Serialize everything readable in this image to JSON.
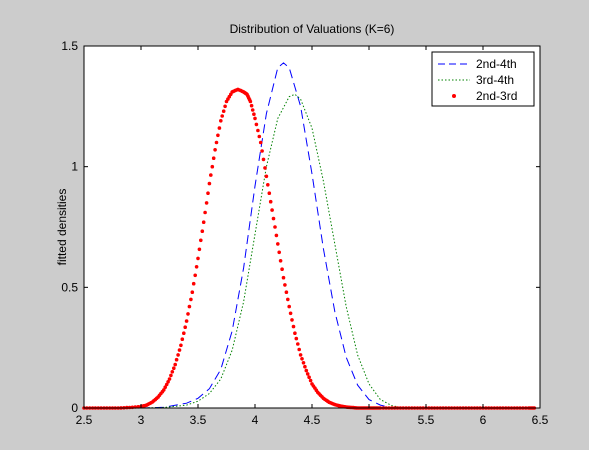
{
  "chart_data": {
    "type": "line",
    "title": "Distribution of Valuations (K=6)",
    "xlabel": "",
    "ylabel": "fitted densities",
    "xlim": [
      2.5,
      6.5
    ],
    "ylim": [
      0,
      1.5
    ],
    "xticks": [
      2.5,
      3,
      3.5,
      4,
      4.5,
      5,
      5.5,
      6,
      6.5
    ],
    "xtick_labels": [
      "2.5",
      "3",
      "3.5",
      "4",
      "4.5",
      "5",
      "5.5",
      "6",
      "6.5"
    ],
    "yticks": [
      0,
      0.5,
      1,
      1.5
    ],
    "ytick_labels": [
      "0",
      "0.5",
      "1",
      "1.5"
    ],
    "grid": false,
    "legend_position": "top-right",
    "series": [
      {
        "name": "2nd-4th",
        "style": "dashed",
        "color": "#0000ff",
        "x": [
          3.0,
          3.2,
          3.4,
          3.5,
          3.6,
          3.7,
          3.8,
          3.9,
          4.0,
          4.1,
          4.2,
          4.25,
          4.3,
          4.4,
          4.5,
          4.6,
          4.7,
          4.8,
          4.9,
          5.0,
          5.1,
          5.2
        ],
        "y": [
          0.0,
          0.003,
          0.02,
          0.04,
          0.08,
          0.16,
          0.32,
          0.58,
          0.92,
          1.22,
          1.41,
          1.43,
          1.41,
          1.25,
          0.97,
          0.66,
          0.4,
          0.21,
          0.095,
          0.035,
          0.012,
          0.0
        ]
      },
      {
        "name": "3rd-4th",
        "style": "dotted",
        "color": "#008000",
        "x": [
          3.0,
          3.2,
          3.4,
          3.5,
          3.6,
          3.7,
          3.8,
          3.9,
          4.0,
          4.1,
          4.2,
          4.3,
          4.35,
          4.4,
          4.5,
          4.6,
          4.7,
          4.8,
          4.9,
          5.0,
          5.1,
          5.2,
          5.3
        ],
        "y": [
          0.0,
          0.002,
          0.012,
          0.028,
          0.06,
          0.12,
          0.24,
          0.44,
          0.72,
          1.0,
          1.2,
          1.29,
          1.3,
          1.28,
          1.16,
          0.94,
          0.68,
          0.42,
          0.22,
          0.1,
          0.035,
          0.01,
          0.0
        ]
      },
      {
        "name": "2nd-3rd",
        "style": "markers",
        "color": "#ff0000",
        "x": [
          2.5,
          2.6,
          2.7,
          2.8,
          2.9,
          3.0,
          3.05,
          3.1,
          3.15,
          3.2,
          3.25,
          3.3,
          3.35,
          3.4,
          3.45,
          3.5,
          3.55,
          3.6,
          3.65,
          3.7,
          3.75,
          3.8,
          3.85,
          3.9,
          3.93,
          3.96,
          4.0,
          4.05,
          4.1,
          4.15,
          4.2,
          4.25,
          4.3,
          4.35,
          4.4,
          4.45,
          4.5,
          4.55,
          4.6,
          4.65,
          4.7,
          4.75,
          4.8,
          4.85,
          4.9,
          4.95,
          5.0,
          5.05,
          5.1,
          5.2,
          5.3,
          5.4,
          5.5,
          5.6,
          5.7,
          5.8,
          5.9,
          6.0,
          6.1,
          6.2,
          6.3,
          6.4,
          6.45
        ],
        "y": [
          0.0,
          0.0,
          0.0,
          0.0,
          0.002,
          0.006,
          0.012,
          0.025,
          0.045,
          0.075,
          0.12,
          0.18,
          0.26,
          0.36,
          0.48,
          0.62,
          0.77,
          0.93,
          1.07,
          1.19,
          1.27,
          1.31,
          1.32,
          1.31,
          1.3,
          1.27,
          1.2,
          1.1,
          0.96,
          0.82,
          0.68,
          0.54,
          0.42,
          0.31,
          0.22,
          0.155,
          0.1,
          0.065,
          0.04,
          0.024,
          0.014,
          0.008,
          0.004,
          0.002,
          0.0,
          0.0,
          0.0,
          0.0,
          0.0,
          0.0,
          0.0,
          0.0,
          0.0,
          0.0,
          0.0,
          0.0,
          0.0,
          0.0,
          0.0,
          0.0,
          0.0,
          0.0,
          0.0
        ]
      }
    ]
  }
}
